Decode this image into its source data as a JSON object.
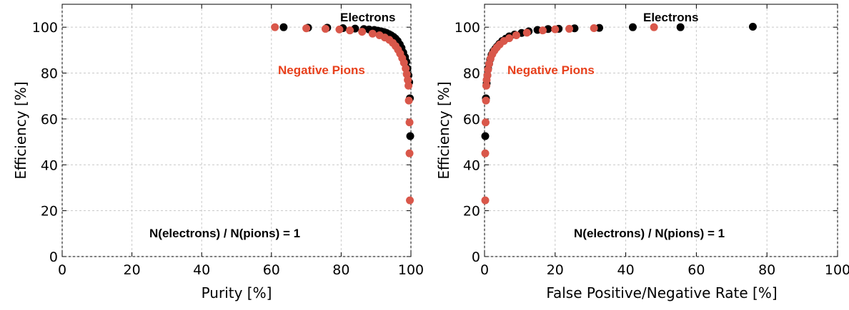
{
  "chart_data": [
    {
      "type": "scatter",
      "xlabel": "Purity [%]",
      "ylabel": "Efficiency [%]",
      "xlim": [
        0,
        100
      ],
      "ylim": [
        0,
        110
      ],
      "xticks": [
        "0",
        "20",
        "40",
        "60",
        "80",
        "100"
      ],
      "yticks": [
        "0",
        "20",
        "40",
        "60",
        "80",
        "100"
      ],
      "grid": true,
      "series": [
        {
          "name": "Electrons",
          "color": "#000000",
          "points": [
            [
              63.5,
              100
            ],
            [
              70.5,
              99.8
            ],
            [
              76,
              99.8
            ],
            [
              80.5,
              99.6
            ],
            [
              84,
              99.4
            ],
            [
              86.5,
              99.2
            ],
            [
              88,
              99
            ],
            [
              89.5,
              98.8
            ],
            [
              90.5,
              98.5
            ],
            [
              91.5,
              98.2
            ],
            [
              92.3,
              97.9
            ],
            [
              93,
              97.5
            ],
            [
              93.7,
              97
            ],
            [
              94.3,
              96.5
            ],
            [
              95,
              95.8
            ],
            [
              95.6,
              95
            ],
            [
              96.2,
              94
            ],
            [
              96.8,
              92.5
            ],
            [
              97.3,
              91
            ],
            [
              97.8,
              89
            ],
            [
              98.3,
              87
            ],
            [
              98.7,
              85
            ],
            [
              99,
              82
            ],
            [
              99.3,
              79
            ],
            [
              99.5,
              76
            ],
            [
              99.7,
              69
            ],
            [
              99.8,
              52.5
            ]
          ]
        },
        {
          "name": "Negative Pions",
          "color": "#d9574a",
          "points": [
            [
              61,
              100
            ],
            [
              70,
              99.5
            ],
            [
              75.5,
              99.3
            ],
            [
              79.5,
              99
            ],
            [
              82.5,
              98.6
            ],
            [
              86,
              98
            ],
            [
              89,
              97.2
            ],
            [
              91,
              96.5
            ],
            [
              92.5,
              95.5
            ],
            [
              93.8,
              94.5
            ],
            [
              94.8,
              93.2
            ],
            [
              95.6,
              91.8
            ],
            [
              96.3,
              90.2
            ],
            [
              96.9,
              88.5
            ],
            [
              97.5,
              86.5
            ],
            [
              98,
              84.5
            ],
            [
              98.5,
              82
            ],
            [
              98.8,
              79.5
            ],
            [
              99.1,
              77
            ],
            [
              99.3,
              74.5
            ],
            [
              99.4,
              68
            ],
            [
              99.6,
              58.5
            ],
            [
              99.6,
              45
            ],
            [
              99.7,
              24.5
            ]
          ]
        }
      ],
      "annotations": [
        {
          "text": "Electrons",
          "color": "#000000"
        },
        {
          "text": "Negative Pions",
          "color": "#e8401c"
        },
        {
          "text": "N(electrons) / N(pions) = 1",
          "color": "#000000"
        }
      ]
    },
    {
      "type": "scatter",
      "xlabel": "False Positive/Negative Rate [%]",
      "ylabel": "Efficiency [%]",
      "xlim": [
        0,
        100
      ],
      "ylim": [
        0,
        110
      ],
      "xticks": [
        "0",
        "20",
        "40",
        "60",
        "80",
        "100"
      ],
      "yticks": [
        "0",
        "20",
        "40",
        "60",
        "80",
        "100"
      ],
      "grid": true,
      "series": [
        {
          "name": "Electrons",
          "color": "#000000",
          "points": [
            [
              76,
              100.2
            ],
            [
              55.5,
              100
            ],
            [
              42,
              100
            ],
            [
              32.5,
              99.7
            ],
            [
              25.5,
              99.5
            ],
            [
              21,
              99.3
            ],
            [
              18,
              99.2
            ],
            [
              15,
              98.8
            ],
            [
              12.5,
              98.2
            ],
            [
              10.5,
              97.5
            ],
            [
              8.5,
              96.8
            ],
            [
              7,
              96
            ],
            [
              6,
              95
            ],
            [
              5,
              94
            ],
            [
              4.2,
              92.8
            ],
            [
              3.5,
              91.5
            ],
            [
              3,
              90.5
            ],
            [
              2.5,
              89.5
            ],
            [
              2,
              88
            ],
            [
              1.6,
              86
            ],
            [
              1.3,
              84
            ],
            [
              1,
              82
            ],
            [
              0.8,
              79
            ],
            [
              0.6,
              75.5
            ],
            [
              0.4,
              69
            ],
            [
              0.2,
              52.5
            ]
          ]
        },
        {
          "name": "Negative Pions",
          "color": "#d9574a",
          "points": [
            [
              48,
              100
            ],
            [
              31,
              99.6
            ],
            [
              24,
              99.3
            ],
            [
              20,
              99.1
            ],
            [
              16.5,
              98.6
            ],
            [
              12,
              97.6
            ],
            [
              9,
              96.5
            ],
            [
              7,
              95.2
            ],
            [
              5.5,
              94
            ],
            [
              4.3,
              92.5
            ],
            [
              3.5,
              91.2
            ],
            [
              2.8,
              89.8
            ],
            [
              2.2,
              88.2
            ],
            [
              1.7,
              86.3
            ],
            [
              1.3,
              84
            ],
            [
              1,
              81.5
            ],
            [
              0.8,
              79
            ],
            [
              0.6,
              77
            ],
            [
              0.5,
              74.5
            ],
            [
              0.4,
              68
            ],
            [
              0.3,
              58.5
            ],
            [
              0.2,
              45
            ],
            [
              0.2,
              24.5
            ]
          ]
        }
      ],
      "annotations": [
        {
          "text": "Electrons",
          "color": "#000000"
        },
        {
          "text": "Negative Pions",
          "color": "#e8401c"
        },
        {
          "text": "N(electrons) / N(pions) = 1",
          "color": "#000000"
        }
      ]
    }
  ]
}
